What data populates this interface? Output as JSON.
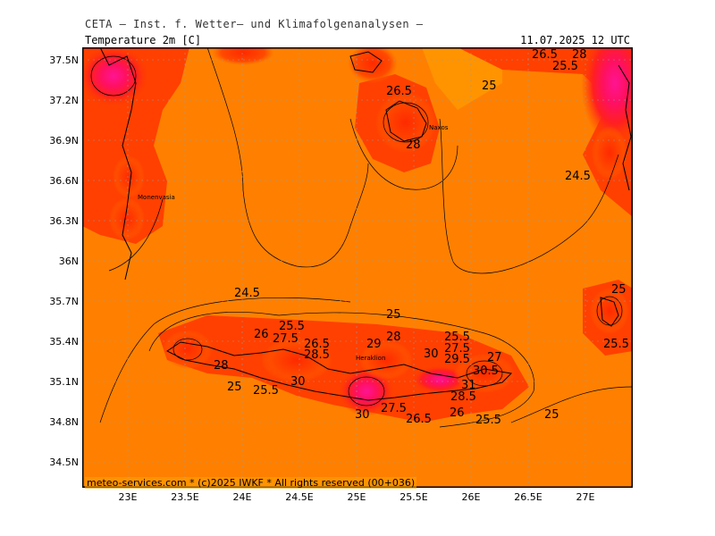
{
  "header": {
    "title": "CETA — Inst. f. Wetter— und Klimafolgenanalysen —",
    "variable": "Temperature 2m [C]",
    "datetime": "11.07.2025 12 UTC"
  },
  "credit": "meteo-services.com * (c)2025 IWKF * All rights reserved (00+036)",
  "colors": {
    "background_field": "#ff8000",
    "warm_field": "#ff4000",
    "hot_field": "#ff0040",
    "very_hot": "#ff1493",
    "cool_field": "#ff9800",
    "contour": "#000000"
  },
  "axes": {
    "y_ticks": [
      "37.5N",
      "37.2N",
      "36.9N",
      "36.6N",
      "36.3N",
      "36N",
      "35.7N",
      "35.4N",
      "35.1N",
      "34.8N",
      "34.5N"
    ],
    "x_ticks": [
      "23E",
      "23.5E",
      "24E",
      "24.5E",
      "25E",
      "25.5E",
      "26E",
      "26.5E",
      "27E"
    ]
  },
  "places": {
    "naxos": "Naxos",
    "monemvasia": "Monenvasia",
    "heraklion": "Heraklion"
  },
  "contour_labels": {
    "l1": "26.5",
    "l2": "28",
    "l3": "25.5",
    "l4": "26.5",
    "l5": "25",
    "l6": "26.5",
    "l7": "28",
    "l8": "24.5",
    "l9": "24.5",
    "l10": "25",
    "l11": "25.5",
    "l12": "25",
    "l13": "25.5",
    "l14": "26",
    "l15": "27.5",
    "l16": "26.5",
    "l17": "28.5",
    "l18": "29",
    "l19": "28",
    "l20": "25.5",
    "l21": "27.5",
    "l22": "28",
    "l23": "30",
    "l24": "29.5",
    "l25": "27",
    "l26": "30.5",
    "l27": "25",
    "l28": "25.5",
    "l29": "30",
    "l30": "31",
    "l31": "28.5",
    "l32": "30",
    "l33": "27.5",
    "l34": "26.5",
    "l35": "26",
    "l36": "25.5",
    "l37": "25"
  }
}
